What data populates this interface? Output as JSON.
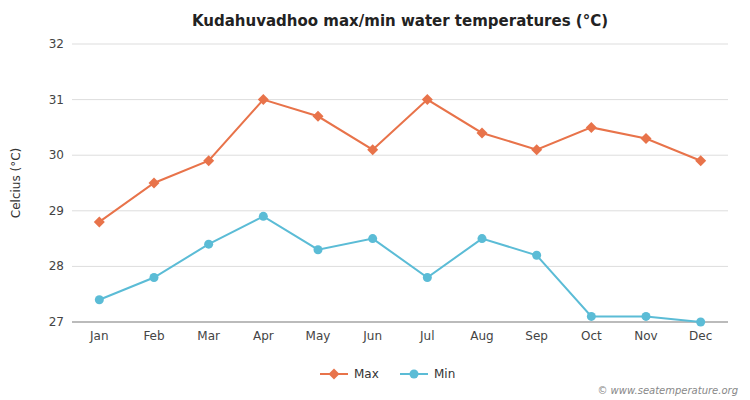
{
  "chart_data": {
    "type": "line",
    "title": "Kudahuvadhoo max/min water temperatures (°C)",
    "y_label": "Celcius (°C)",
    "categories": [
      "Jan",
      "Feb",
      "Mar",
      "Apr",
      "May",
      "Jun",
      "Jul",
      "Aug",
      "Sep",
      "Oct",
      "Nov",
      "Dec"
    ],
    "series": [
      {
        "name": "Max",
        "color": "#e8734a",
        "marker": "diamond",
        "line_style": "solid",
        "values": [
          28.8,
          29.5,
          29.9,
          31.0,
          30.7,
          30.1,
          31.0,
          30.4,
          30.1,
          30.5,
          30.3,
          29.9
        ]
      },
      {
        "name": "Min",
        "color": "#5bbcd6",
        "marker": "circle",
        "line_style": "solid",
        "values": [
          27.4,
          27.8,
          28.4,
          28.9,
          28.3,
          28.5,
          27.8,
          28.5,
          28.2,
          27.1,
          27.1,
          27.0
        ]
      }
    ],
    "ylim": [
      27.0,
      32.0
    ],
    "yticks": [
      27,
      28,
      29,
      30,
      31,
      32
    ],
    "grid": true,
    "legend": "bottom",
    "annotations": [
      "© www.seatemperature.org"
    ]
  }
}
